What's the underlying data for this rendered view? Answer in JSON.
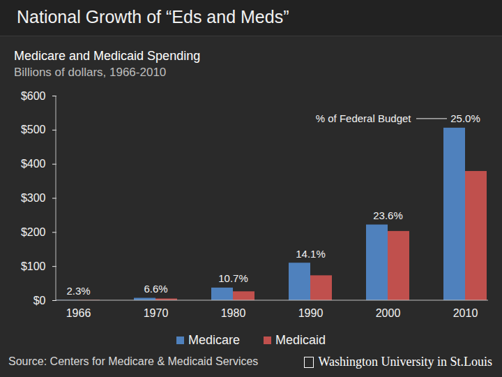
{
  "chart_data": {
    "type": "bar",
    "title": "National Growth of “Eds and Meds”",
    "subtitle": "Medicare and Medicaid Spending",
    "y_label": "Billions of dollars, 1966-2010",
    "categories": [
      "1966",
      "1970",
      "1980",
      "1990",
      "2000",
      "2010"
    ],
    "series": [
      {
        "name": "Medicare",
        "color": "#4f81bd",
        "values": [
          1,
          7,
          37,
          110,
          222,
          506
        ]
      },
      {
        "name": "Medicaid",
        "color": "#c0504d",
        "values": [
          1,
          5,
          26,
          73,
          203,
          379
        ]
      }
    ],
    "ylim": [
      0,
      600
    ],
    "yticks": [
      {
        "value": 0,
        "label": "$0"
      },
      {
        "value": 100,
        "label": "$100"
      },
      {
        "value": 200,
        "label": "$200"
      },
      {
        "value": 300,
        "label": "$300"
      },
      {
        "value": 400,
        "label": "$400"
      },
      {
        "value": 500,
        "label": "$500"
      },
      {
        "value": 600,
        "label": "$600"
      }
    ],
    "annotations": {
      "label": "% of Federal Budget",
      "values": [
        2.3,
        6.6,
        10.7,
        14.1,
        23.6,
        25.0
      ],
      "value_labels": [
        "2.3%",
        "6.6%",
        "10.7%",
        "14.1%",
        "23.6%",
        "25.0%"
      ]
    },
    "legend": "bottom",
    "source": "Source: Centers for Medicare & Medicaid Services",
    "logo": "Washington University in St.Louis"
  }
}
